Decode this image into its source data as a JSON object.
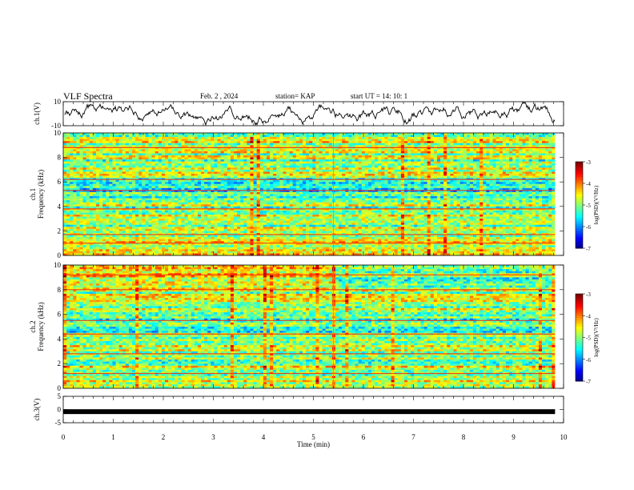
{
  "header": {
    "title": "VLF Spectra",
    "date": "Feb. 2 , 2024",
    "station": "station= KAP",
    "start": "start UT =  14: 10: 1"
  },
  "chart_data": [
    {
      "type": "line",
      "panel": "waveform-ch1",
      "ylabel": "ch.1(V)",
      "ylim": [
        -10,
        10
      ],
      "yticks": [
        "10",
        "-10"
      ],
      "xlim": [
        0,
        10
      ],
      "color": "#000000"
    },
    {
      "type": "heatmap",
      "panel": "spectrogram-ch1",
      "ylabel": "ch.1\nFrequency (kHz)",
      "ylim": [
        0,
        10
      ],
      "yticks": [
        "0",
        "2",
        "4",
        "6",
        "8",
        "10"
      ],
      "xlim": [
        0,
        9.83
      ],
      "colorbar": {
        "label": "log(PSD)(V²/Hz)",
        "range": [
          -7,
          -3
        ],
        "ticks": [
          "-3",
          "-4",
          "-5",
          "-6",
          "-7"
        ]
      },
      "transition_min": 5.4
    },
    {
      "type": "heatmap",
      "panel": "spectrogram-ch2",
      "ylabel": "ch.2\nFrequency (kHz)",
      "ylim": [
        0,
        10
      ],
      "yticks": [
        "0",
        "2",
        "4",
        "6",
        "8",
        "10"
      ],
      "xlim": [
        0,
        9.83
      ],
      "colorbar": {
        "label": "log(PSD)(V²/Hz)",
        "range": [
          -7,
          -3
        ],
        "ticks": [
          "-3",
          "-4",
          "-5",
          "-6",
          "-7"
        ]
      },
      "transition_min": 5.4
    },
    {
      "type": "line",
      "panel": "waveform-ch3",
      "ylabel": "ch.3(V)",
      "ylim": [
        -5,
        5
      ],
      "yticks": [
        "5",
        "0",
        "-5"
      ],
      "xlim": [
        0,
        10
      ],
      "x": [
        0,
        9.83
      ],
      "y": [
        -0.8,
        -0.8
      ],
      "color": "#000000"
    }
  ],
  "xaxis": {
    "label": "Time (min)",
    "ticks": [
      "0",
      "1",
      "2",
      "3",
      "4",
      "5",
      "6",
      "7",
      "8",
      "9",
      "10"
    ]
  }
}
